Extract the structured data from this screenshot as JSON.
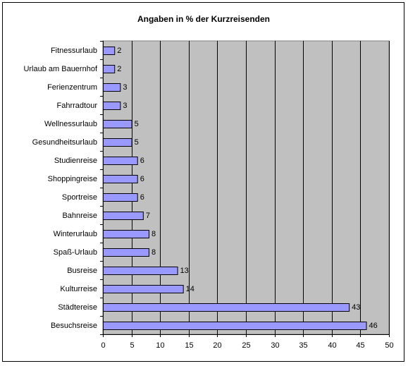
{
  "chart_data": {
    "type": "bar",
    "orientation": "horizontal",
    "title": "Angaben in % der Kurzreisenden",
    "categories": [
      "Fitnessurlaub",
      "Urlaub am Bauernhof",
      "Ferienzentrum",
      "Fahrradtour",
      "Wellnessurlaub",
      "Gesundheitsurlaub",
      "Studienreise",
      "Shoppingreise",
      "Sportreise",
      "Bahnreise",
      "Winterurlaub",
      "Spaß-Urlaub",
      "Busreise",
      "Kulturreise",
      "Städtereise",
      "Besuchsreise"
    ],
    "values": [
      2,
      2,
      3,
      3,
      5,
      5,
      6,
      6,
      6,
      7,
      8,
      8,
      13,
      14,
      43,
      46
    ],
    "xlim": [
      0,
      50
    ],
    "xticks": [
      0,
      5,
      10,
      15,
      20,
      25,
      30,
      35,
      40,
      45,
      50
    ],
    "grid": "vertical",
    "legend": "none",
    "colors": {
      "bar_fill": "#9999ff",
      "bar_stroke": "#000000",
      "plot_background": "#c0c0c0"
    }
  }
}
